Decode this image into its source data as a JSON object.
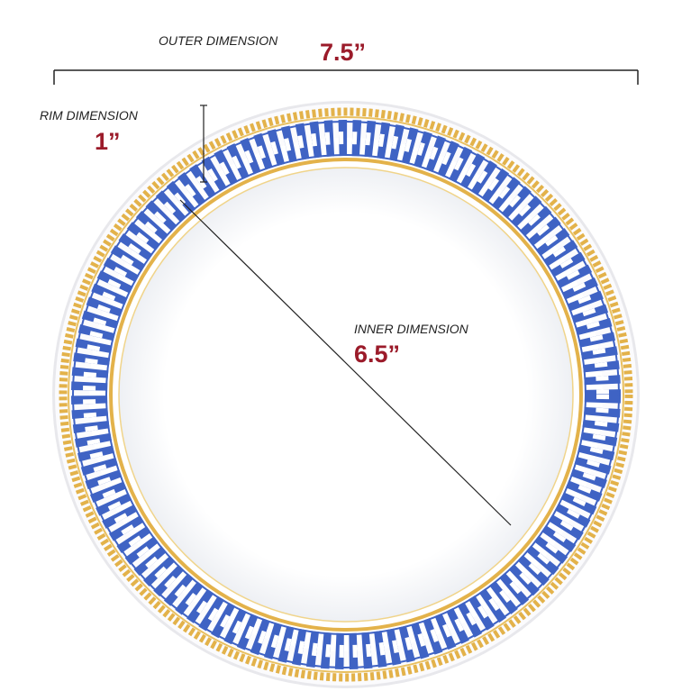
{
  "outer_dimension": {
    "label": "OUTER DIMENSION",
    "value": "7.5”"
  },
  "rim_dimension": {
    "label": "RIM DIMENSION",
    "value": "1”"
  },
  "inner_dimension": {
    "label": "INNER DIMENSION",
    "value": "6.5”"
  }
}
